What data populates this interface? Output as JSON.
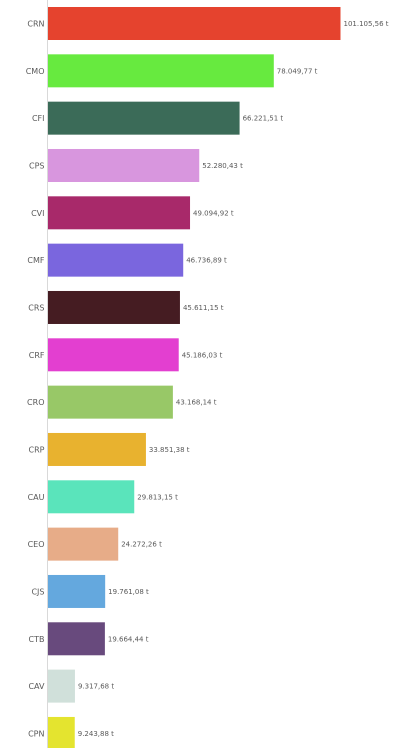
{
  "chart_data": {
    "type": "bar",
    "orientation": "horizontal",
    "categories": [
      "CRN",
      "CMO",
      "CFI",
      "CPS",
      "CVI",
      "CMF",
      "CRS",
      "CRF",
      "CRO",
      "CRP",
      "CAU",
      "CEO",
      "CJS",
      "CTB",
      "CAV",
      "CPN"
    ],
    "values": [
      101105.56,
      78049.77,
      66221.51,
      52280.43,
      49094.92,
      46736.89,
      45611.15,
      45186.03,
      43168.14,
      33851.38,
      29813.15,
      24272.26,
      19761.08,
      19664.44,
      9317.68,
      9243.88
    ],
    "value_labels": [
      "101.105,56 t",
      "78.049,77 t",
      "66.221,51 t",
      "52.280,43 t",
      "49.094,92 t",
      "46.736,89 t",
      "45.611,15 t",
      "45.186,03 t",
      "43.168,14 t",
      "33.851,38 t",
      "29.813,15 t",
      "24.272,26 t",
      "19.761,08 t",
      "19.664,44 t",
      "9.317,68 t",
      "9.243,88 t"
    ],
    "colors": [
      "#e5432e",
      "#67ea3f",
      "#3b6b58",
      "#d896de",
      "#a8296a",
      "#7a66de",
      "#451c22",
      "#e33fd0",
      "#98c867",
      "#e8b22f",
      "#5ae4bb",
      "#e7ac88",
      "#64a8de",
      "#684a7d",
      "#d0e0da",
      "#e4e42f"
    ],
    "title": "",
    "xlabel": "",
    "ylabel": "",
    "xlim": [
      0,
      101105.56
    ],
    "grid": false,
    "legend": "none",
    "axis_color": "#d9d9d9"
  }
}
